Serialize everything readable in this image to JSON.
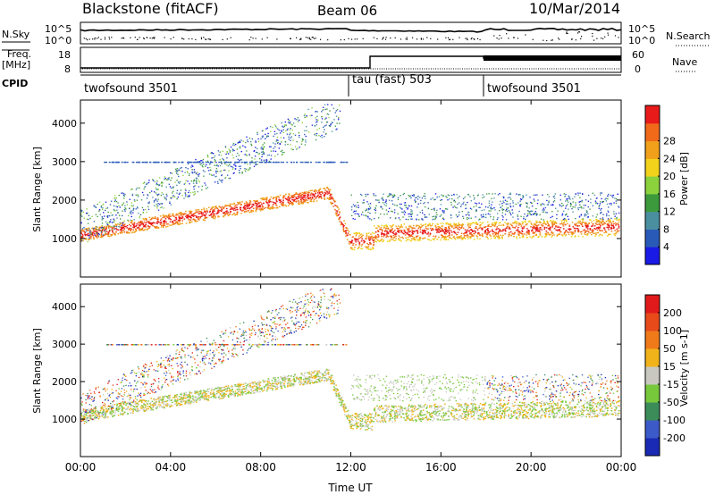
{
  "header": {
    "radar": "Blackstone (fitACF)",
    "beam": "Beam 06",
    "date": "10/Mar/2014"
  },
  "noise_panel": {
    "left_label": "N.Sky",
    "right_label": "N.Search",
    "left_ticks": [
      "10^5",
      "10^0"
    ],
    "right_ticks": [
      "10^5",
      "10^0"
    ]
  },
  "freq_panel": {
    "left_label_line1": "Freq.",
    "left_label_line2": "[MHz]",
    "right_label": "Nave",
    "left_ticks": [
      "18",
      "8"
    ],
    "right_ticks": [
      "60",
      "0"
    ]
  },
  "cpid": {
    "label": "CPID",
    "modes": [
      {
        "name": "twofsound 3501",
        "start_h": 0
      },
      {
        "name": "tau (fast) 503",
        "start_h": 12
      },
      {
        "name": "twofsound 3501",
        "start_h": 18
      }
    ]
  },
  "chart_data": [
    {
      "type": "heatmap",
      "quantity": "Power",
      "ylabel": "Slant Range [km]",
      "ylim": [
        0,
        4600
      ],
      "yticks": [
        1000,
        2000,
        3000,
        4000
      ],
      "xlim_hours": [
        0,
        24
      ],
      "colorbar": {
        "label": "Power [dB]",
        "ticks": [
          "4",
          "8",
          "12",
          "16",
          "20",
          "24",
          "28"
        ],
        "colors": [
          "#1a1ae6",
          "#2a5ab8",
          "#4a8fa0",
          "#3c9a3c",
          "#8cd23c",
          "#f2d21a",
          "#f0a01a",
          "#f06a1a",
          "#e81a1a"
        ]
      }
    },
    {
      "type": "heatmap",
      "quantity": "Velocity",
      "ylabel": "Slant Range [km]",
      "ylim": [
        0,
        4600
      ],
      "yticks": [
        1000,
        2000,
        3000,
        4000
      ],
      "xlim_hours": [
        0,
        24
      ],
      "colorbar": {
        "label": "Velocity [m s-1]",
        "ticks": [
          "200",
          "100",
          "50",
          "15",
          "-15",
          "-50",
          "-100",
          "-200"
        ],
        "colors": [
          "#1a2ab4",
          "#3c5ac8",
          "#3c8c5a",
          "#78c83c",
          "#c8c8c0",
          "#f0b41a",
          "#f07a1a",
          "#e84a1a",
          "#e01a1a"
        ]
      }
    }
  ],
  "xaxis": {
    "label": "Time UT",
    "ticks": [
      "00:00",
      "04:00",
      "08:00",
      "12:00",
      "16:00",
      "20:00",
      "00:00"
    ]
  }
}
